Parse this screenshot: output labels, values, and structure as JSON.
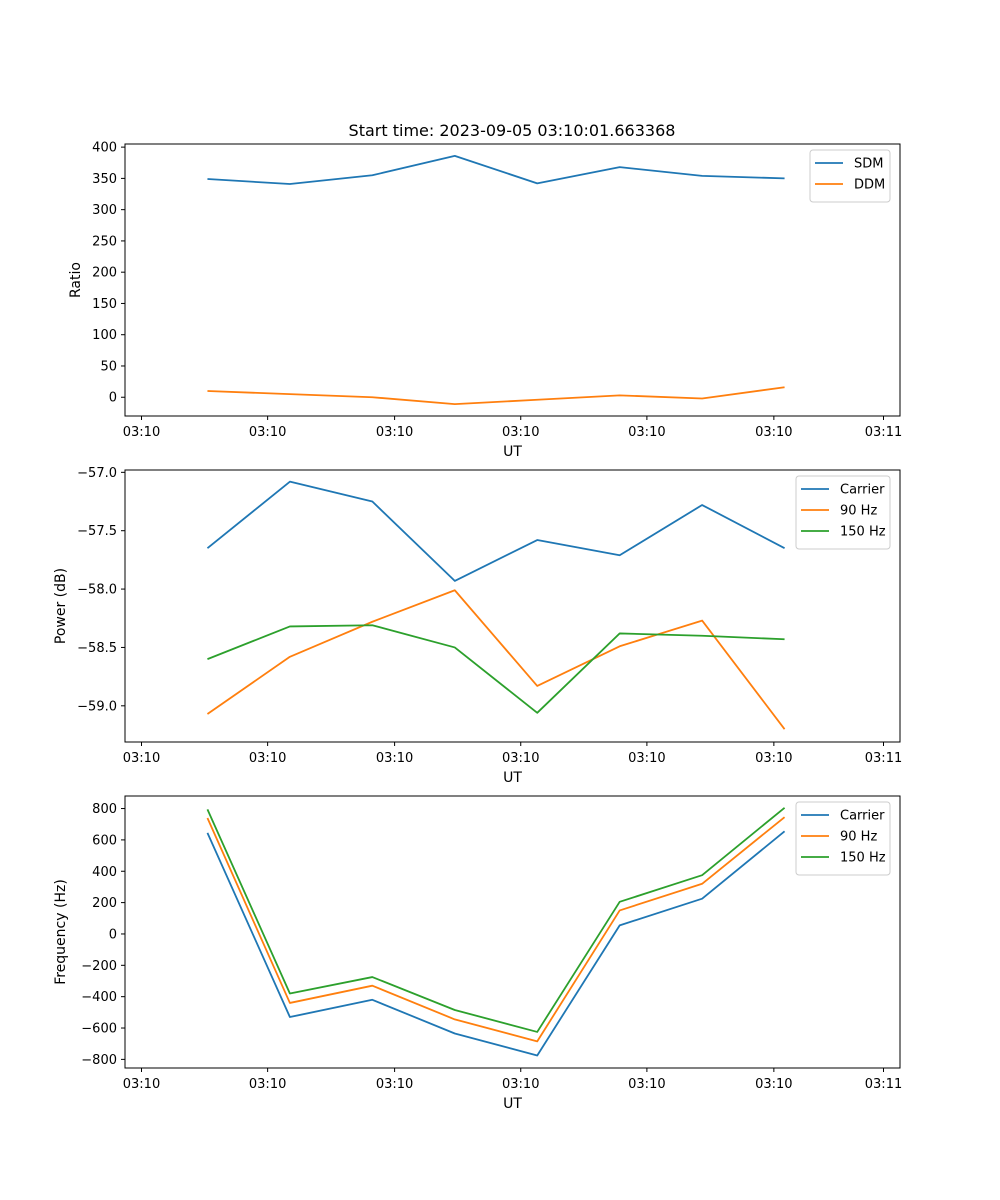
{
  "figure": {
    "title": "Start time: 2023-09-05 03:10:01.663368"
  },
  "chart_data": [
    {
      "type": "line",
      "title": "Start time: 2023-09-05 03:10:01.663368",
      "xlabel": "UT",
      "ylabel": "Ratio",
      "x_tick_labels": [
        "03:10",
        "03:10",
        "03:10",
        "03:10",
        "03:10",
        "03:10",
        "03:11"
      ],
      "y_ticks": [
        0,
        50,
        100,
        150,
        200,
        250,
        300,
        350,
        400
      ],
      "ylim": [
        -30,
        405
      ],
      "x": [
        1,
        2,
        3,
        4,
        5,
        6,
        7,
        8
      ],
      "xlim": [
        0,
        9.4
      ],
      "x_tick_positions": [
        0.2,
        1.73,
        3.27,
        4.8,
        6.33,
        7.87,
        9.2
      ],
      "legend_position": "top-right",
      "series": [
        {
          "name": "SDM",
          "color": "#1f77b4",
          "values": [
            349,
            341,
            355,
            386,
            342,
            368,
            354,
            350
          ]
        },
        {
          "name": "DDM",
          "color": "#ff7f0e",
          "values": [
            10,
            5,
            0,
            -11,
            -4,
            3,
            -2,
            16
          ]
        }
      ]
    },
    {
      "type": "line",
      "xlabel": "UT",
      "ylabel": "Power (dB)",
      "x_tick_labels": [
        "03:10",
        "03:10",
        "03:10",
        "03:10",
        "03:10",
        "03:10",
        "03:11"
      ],
      "y_ticks": [
        -59.0,
        -58.5,
        -58.0,
        -57.5,
        -57.0
      ],
      "y_tick_labels": [
        "−59.0",
        "−58.5",
        "−58.0",
        "−57.5",
        "−57.0"
      ],
      "ylim": [
        -59.31,
        -56.98
      ],
      "x": [
        1,
        2,
        3,
        4,
        5,
        6,
        7,
        8
      ],
      "xlim": [
        0,
        9.4
      ],
      "x_tick_positions": [
        0.2,
        1.73,
        3.27,
        4.8,
        6.33,
        7.87,
        9.2
      ],
      "legend_position": "top-right",
      "series": [
        {
          "name": "Carrier",
          "color": "#1f77b4",
          "values": [
            -57.65,
            -57.08,
            -57.25,
            -57.93,
            -57.58,
            -57.71,
            -57.28,
            -57.65
          ]
        },
        {
          "name": "90 Hz",
          "color": "#ff7f0e",
          "values": [
            -59.07,
            -58.58,
            -58.28,
            -58.01,
            -58.83,
            -58.49,
            -58.27,
            -59.2
          ]
        },
        {
          "name": "150 Hz",
          "color": "#2ca02c",
          "values": [
            -58.6,
            -58.32,
            -58.31,
            -58.5,
            -59.06,
            -58.38,
            -58.4,
            -58.43
          ]
        }
      ]
    },
    {
      "type": "line",
      "xlabel": "UT",
      "ylabel": "Frequency (Hz)",
      "x_tick_labels": [
        "03:10",
        "03:10",
        "03:10",
        "03:10",
        "03:10",
        "03:10",
        "03:11"
      ],
      "y_ticks": [
        -800,
        -600,
        -400,
        -200,
        0,
        200,
        400,
        600,
        800
      ],
      "y_tick_labels": [
        "−800",
        "−600",
        "−400",
        "−200",
        "0",
        "200",
        "400",
        "600",
        "800"
      ],
      "ylim": [
        -855,
        880
      ],
      "x": [
        1,
        2,
        3,
        4,
        5,
        6,
        7,
        8
      ],
      "xlim": [
        0,
        9.4
      ],
      "x_tick_positions": [
        0.2,
        1.73,
        3.27,
        4.8,
        6.33,
        7.87,
        9.2
      ],
      "legend_position": "top-right",
      "series": [
        {
          "name": "Carrier",
          "color": "#1f77b4",
          "values": [
            645,
            -530,
            -420,
            -635,
            -775,
            55,
            225,
            655
          ]
        },
        {
          "name": "90 Hz",
          "color": "#ff7f0e",
          "values": [
            740,
            -440,
            -330,
            -545,
            -685,
            150,
            320,
            745
          ]
        },
        {
          "name": "150 Hz",
          "color": "#2ca02c",
          "values": [
            795,
            -380,
            -275,
            -485,
            -625,
            205,
            375,
            805
          ]
        }
      ]
    }
  ]
}
